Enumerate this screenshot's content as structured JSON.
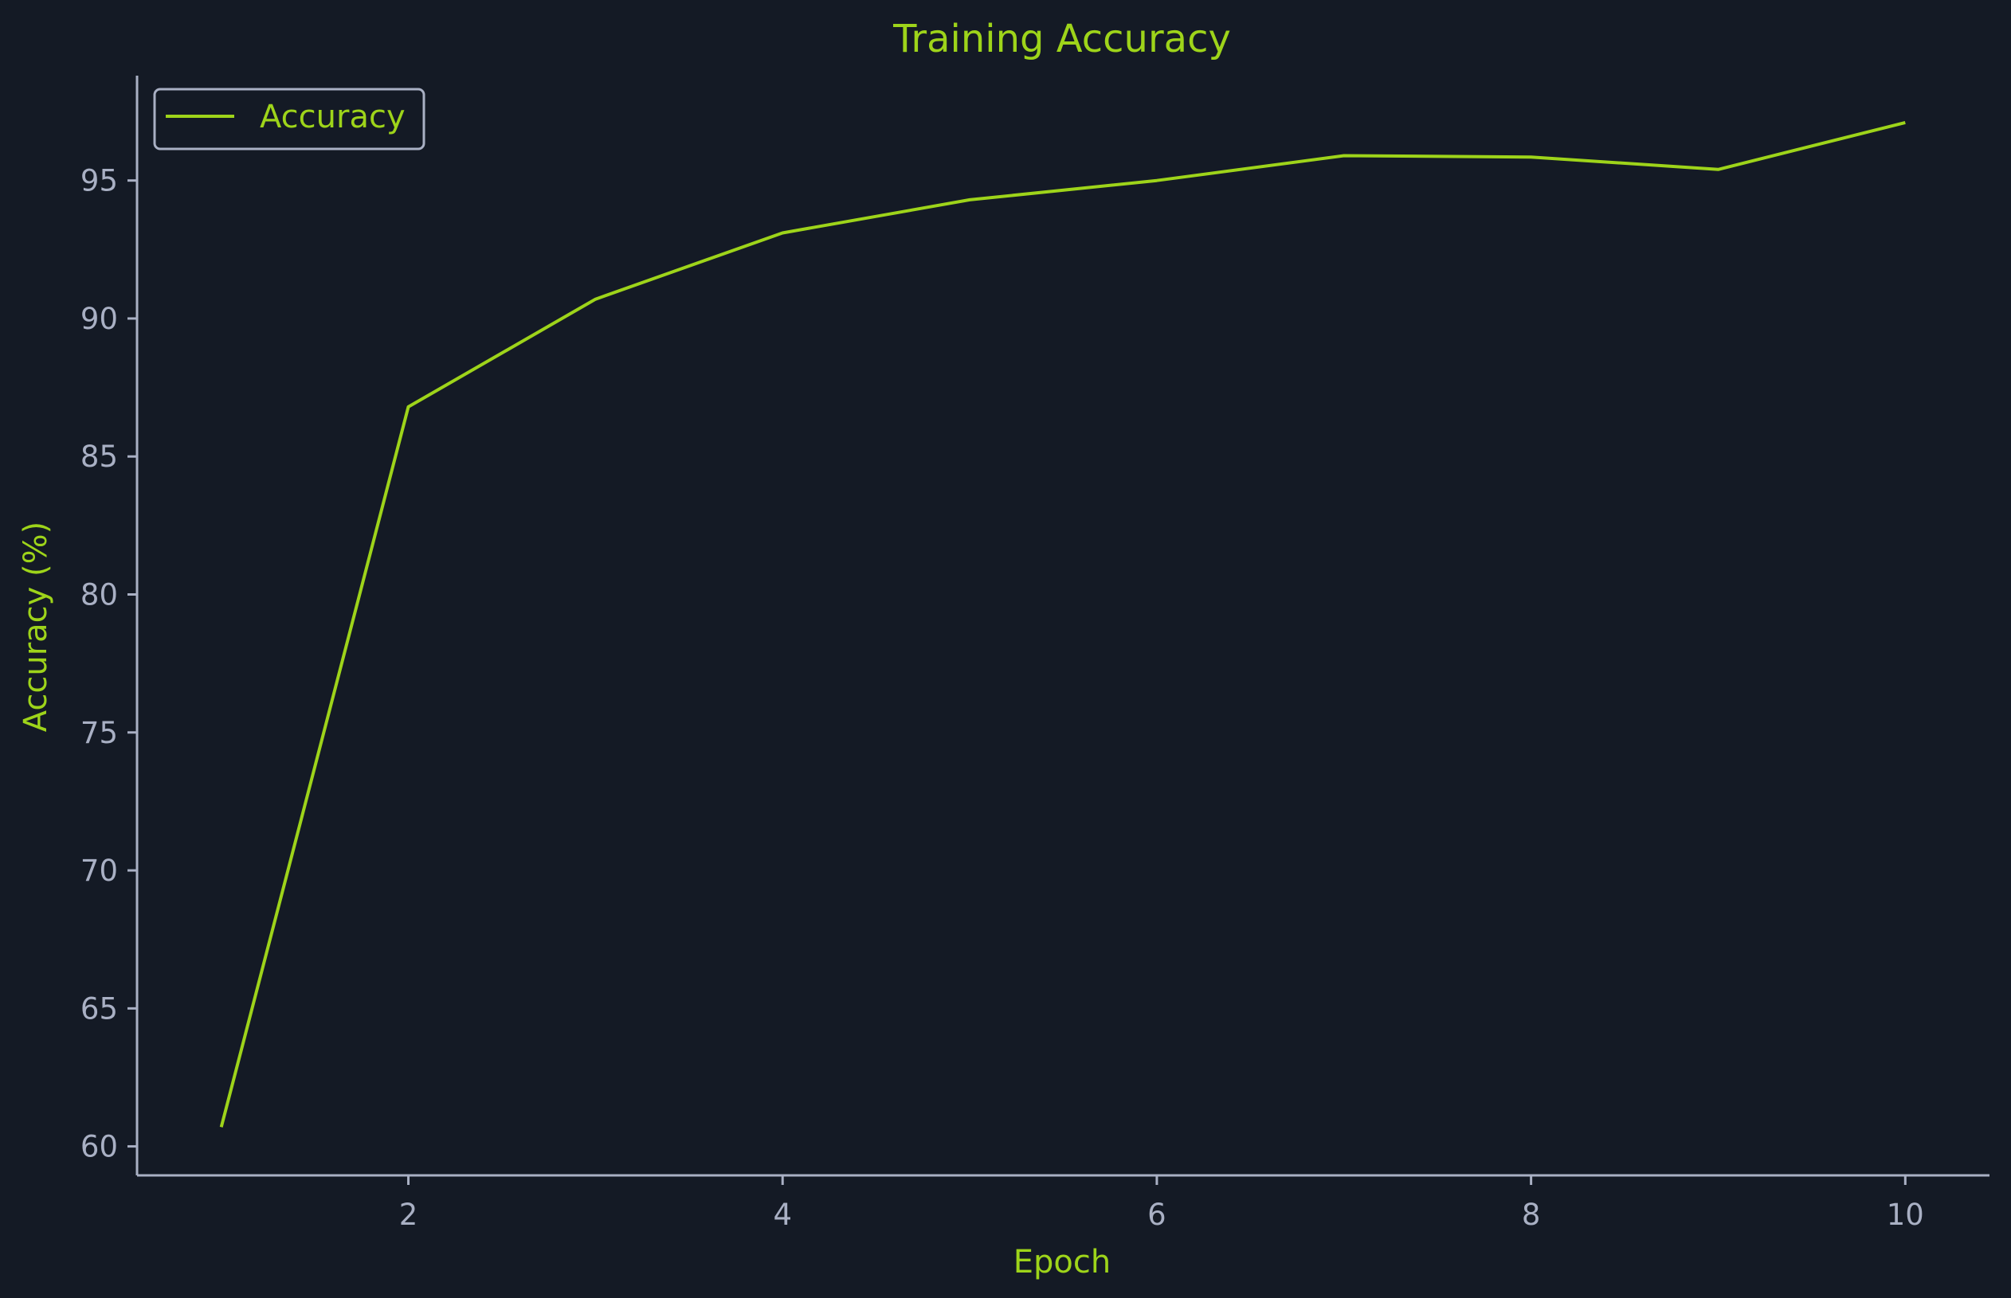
{
  "colors": {
    "background": "#141a25",
    "accent": "#9ed41a",
    "axis": "#a9b0c4",
    "tick_text": "#a9b0c4"
  },
  "chart_data": {
    "type": "line",
    "title": "Training Accuracy",
    "xlabel": "Epoch",
    "ylabel": "Accuracy (%)",
    "x": [
      1,
      2,
      3,
      4,
      5,
      6,
      7,
      8,
      9,
      10
    ],
    "series": [
      {
        "name": "Accuracy",
        "values": [
          60.7,
          86.8,
          90.7,
          93.1,
          94.3,
          95.0,
          95.9,
          95.85,
          95.4,
          97.1
        ]
      }
    ],
    "xlim": [
      0.55,
      10.45
    ],
    "ylim": [
      58.95,
      98.8
    ],
    "xticks": [
      2,
      4,
      6,
      8,
      10
    ],
    "yticks": [
      60,
      65,
      70,
      75,
      80,
      85,
      90,
      95
    ],
    "grid": false,
    "legend_position": "top-left"
  }
}
